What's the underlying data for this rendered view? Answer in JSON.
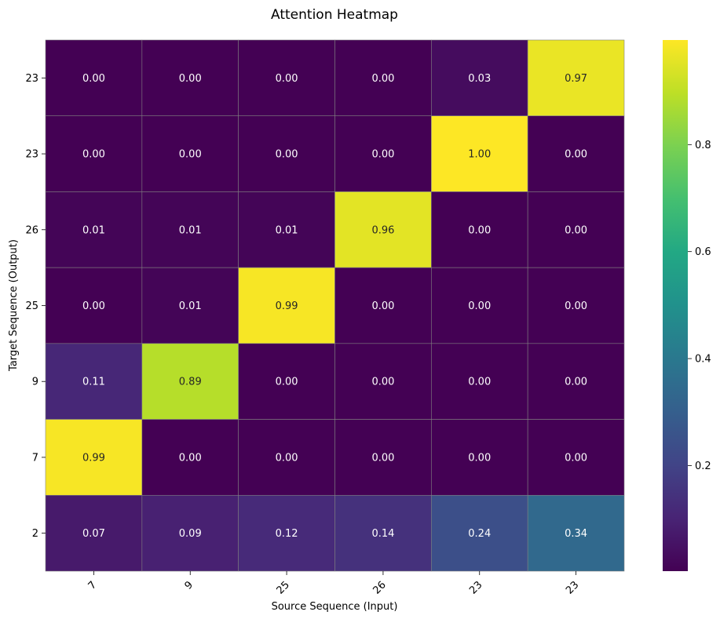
{
  "chart_data": {
    "type": "heatmap",
    "title": "Attention Heatmap",
    "xlabel": "Source Sequence (Input)",
    "ylabel": "Target Sequence (Output)",
    "x_categories": [
      "7",
      "9",
      "25",
      "26",
      "23",
      "23"
    ],
    "y_categories": [
      "23",
      "23",
      "26",
      "25",
      "9",
      "7",
      "2"
    ],
    "values": [
      [
        0.0,
        0.0,
        0.0,
        0.0,
        0.03,
        0.97
      ],
      [
        0.0,
        0.0,
        0.0,
        0.0,
        1.0,
        0.0
      ],
      [
        0.01,
        0.01,
        0.01,
        0.96,
        0.0,
        0.0
      ],
      [
        0.0,
        0.01,
        0.99,
        0.0,
        0.0,
        0.0
      ],
      [
        0.11,
        0.89,
        0.0,
        0.0,
        0.0,
        0.0
      ],
      [
        0.99,
        0.0,
        0.0,
        0.0,
        0.0,
        0.0
      ],
      [
        0.07,
        0.09,
        0.12,
        0.14,
        0.24,
        0.34
      ]
    ],
    "value_format": "0.00",
    "colormap": "viridis",
    "vmin": 0.0,
    "vmax": 1.0,
    "colorbar_ticks": [
      "0.2",
      "0.4",
      "0.6",
      "0.8"
    ],
    "colorbar_tick_values": [
      0.2,
      0.4,
      0.6,
      0.8
    ],
    "grid_line_color": "#808080",
    "x_tick_rotation": "45 degrees"
  }
}
